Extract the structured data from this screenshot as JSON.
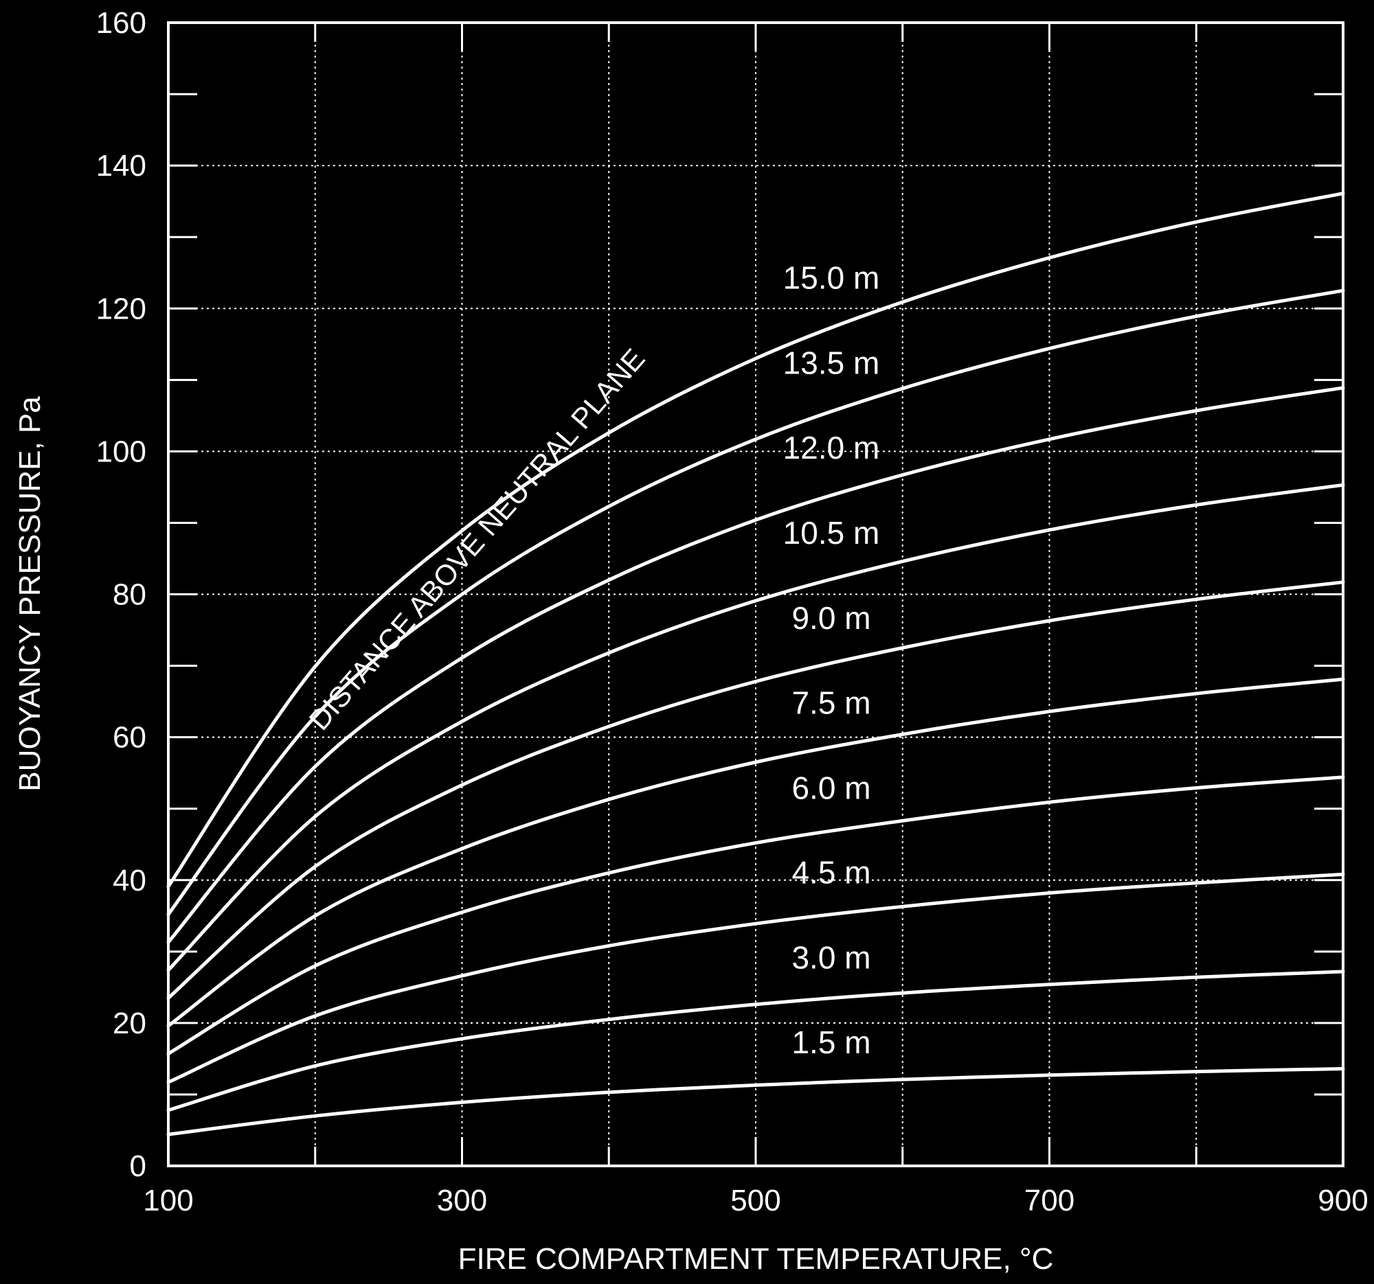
{
  "chart_data": {
    "type": "line",
    "title": "",
    "xlabel": "FIRE COMPARTMENT TEMPERATURE, °C",
    "ylabel": "BUOYANCY PRESSURE, Pa",
    "xlim": [
      100,
      900
    ],
    "ylim": [
      0,
      160
    ],
    "x_tick_labels": [
      "100",
      "300",
      "500",
      "700",
      "900"
    ],
    "y_tick_labels": [
      "0",
      "20",
      "40",
      "60",
      "80",
      "100",
      "120",
      "140",
      "160"
    ],
    "grid": true,
    "annotation": "DISTANCE ABOVE NEUTRAL PLANE",
    "x": [
      100,
      200,
      300,
      400,
      500,
      600,
      700,
      800,
      900
    ],
    "series": [
      {
        "name": "1.5 m",
        "values": [
          4.4,
          7.0,
          8.9,
          10.3,
          11.3,
          12.1,
          12.7,
          13.2,
          13.6
        ]
      },
      {
        "name": "3.0 m",
        "values": [
          7.8,
          14.0,
          17.8,
          20.5,
          22.6,
          24.2,
          25.4,
          26.4,
          27.2
        ]
      },
      {
        "name": "4.5 m",
        "values": [
          11.7,
          21.0,
          26.6,
          30.8,
          33.9,
          36.3,
          38.2,
          39.6,
          40.8
        ]
      },
      {
        "name": "6.0 m",
        "values": [
          15.7,
          28.0,
          35.5,
          41.0,
          45.2,
          48.3,
          50.9,
          52.9,
          54.4
        ]
      },
      {
        "name": "7.5 m",
        "values": [
          19.6,
          35.0,
          44.4,
          51.3,
          56.5,
          60.4,
          63.6,
          66.1,
          68.1
        ]
      },
      {
        "name": "9.0 m",
        "values": [
          23.5,
          41.9,
          53.3,
          61.5,
          67.8,
          72.5,
          76.3,
          79.3,
          81.7
        ]
      },
      {
        "name": "10.5 m",
        "values": [
          27.4,
          48.9,
          62.2,
          71.8,
          79.1,
          84.6,
          89.0,
          92.5,
          95.3
        ]
      },
      {
        "name": "12.0 m",
        "values": [
          31.3,
          55.9,
          71.1,
          82.0,
          90.4,
          96.7,
          101.7,
          105.7,
          108.9
        ]
      },
      {
        "name": "13.5 m",
        "values": [
          35.2,
          62.9,
          80.0,
          92.3,
          101.7,
          108.8,
          114.4,
          118.9,
          122.5
        ]
      },
      {
        "name": "15.0 m",
        "values": [
          39.1,
          69.9,
          88.9,
          102.6,
          113.0,
          120.9,
          127.1,
          132.1,
          136.1
        ]
      }
    ]
  }
}
